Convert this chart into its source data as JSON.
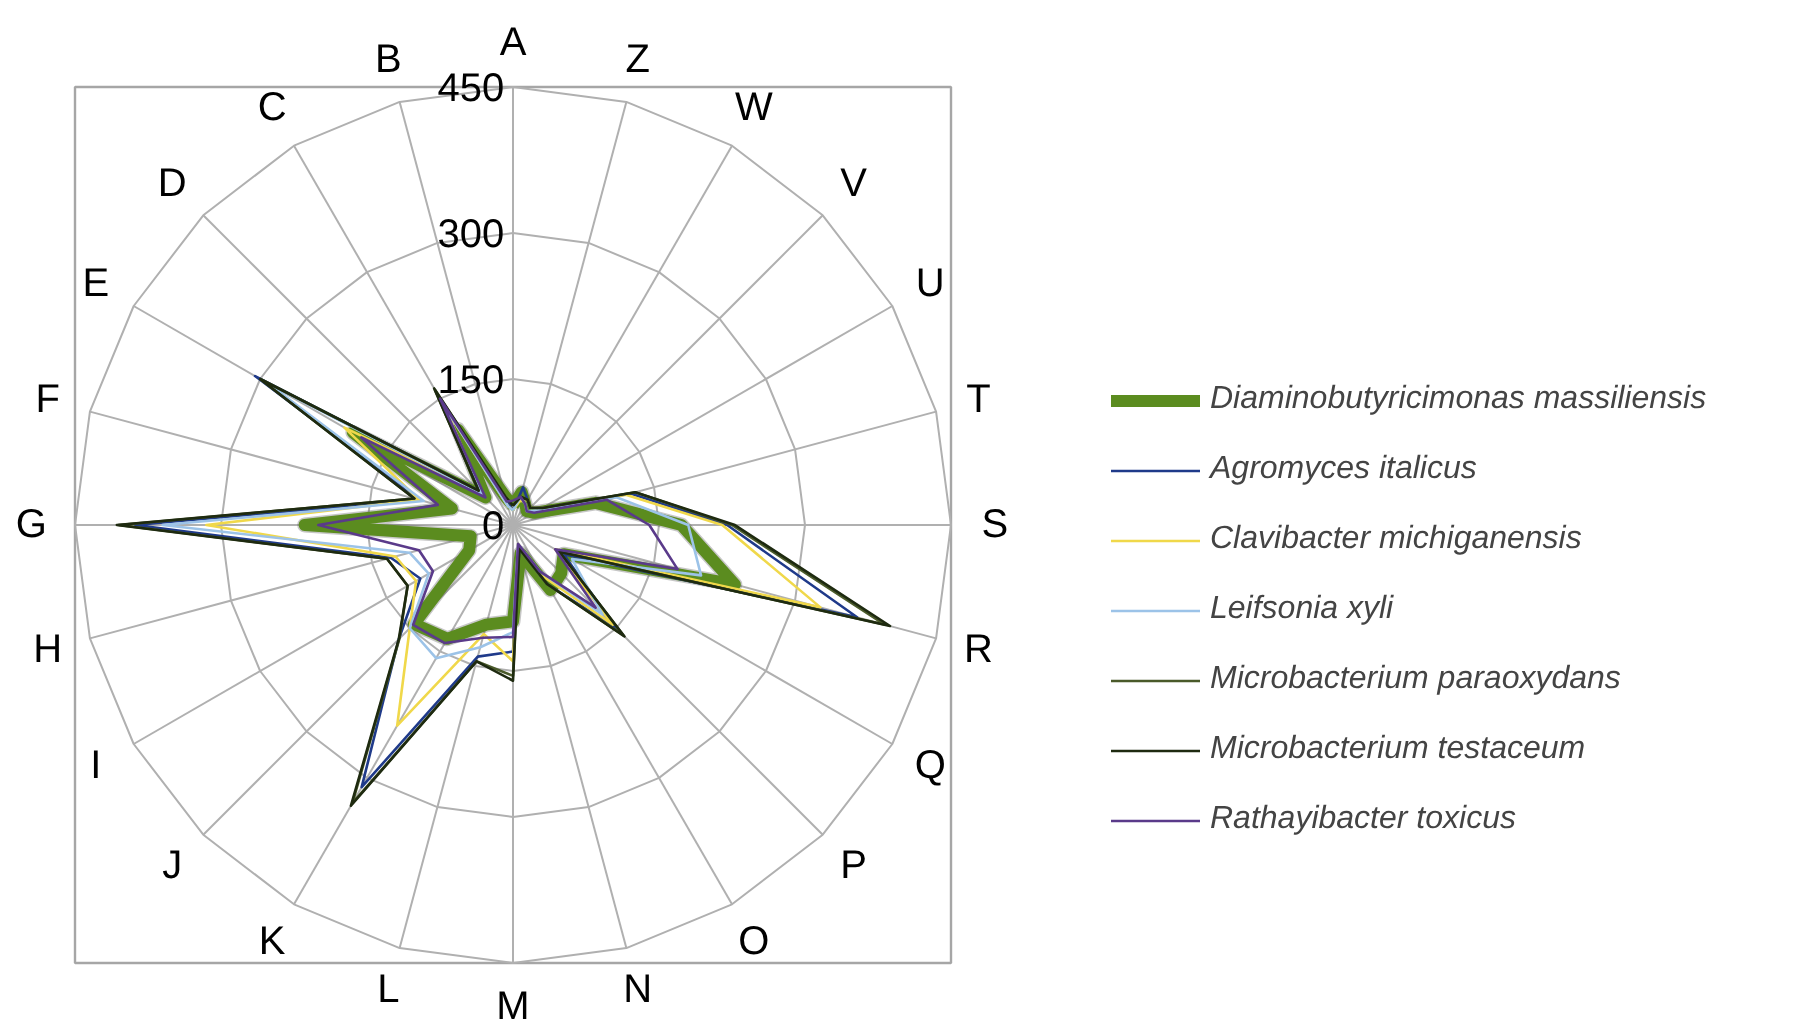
{
  "chart_data": {
    "type": "radar",
    "categories": [
      "A",
      "Z",
      "W",
      "V",
      "U",
      "T",
      "S",
      "R",
      "Q",
      "P",
      "O",
      "N",
      "M",
      "L",
      "K",
      "J",
      "I",
      "H",
      "G",
      "F",
      "E",
      "D",
      "C",
      "B"
    ],
    "ylim": [
      0,
      450
    ],
    "yticks": [
      0,
      150,
      300,
      450
    ],
    "grid": true,
    "legend": "right",
    "series": [
      {
        "name": "Diaminobutyricimonas massiliensis",
        "color": "#5b8c1f",
        "values": [
          20,
          35,
          25,
          20,
          25,
          88,
          173,
          236,
          60,
          70,
          77,
          30,
          99,
          106,
          135,
          144,
          52,
          45,
          214,
          65,
          190,
          40,
          113,
          30
        ]
      },
      {
        "name": "Agromyces italicus",
        "color": "#1f3a8a",
        "values": [
          15,
          40,
          30,
          25,
          35,
          125,
          220,
          366,
          60,
          150,
          70,
          25,
          130,
          140,
          311,
          166,
          110,
          130,
          388,
          100,
          306,
          50,
          150,
          25
        ]
      },
      {
        "name": "Clavibacter michiganensis",
        "color": "#f0d84a",
        "values": [
          15,
          25,
          30,
          25,
          35,
          120,
          215,
          327,
          50,
          145,
          60,
          20,
          140,
          116,
          238,
          150,
          115,
          125,
          315,
          100,
          200,
          45,
          140,
          20
        ]
      },
      {
        "name": "Leifsonia xyli",
        "color": "#9cc3e8",
        "values": [
          15,
          30,
          25,
          20,
          30,
          110,
          180,
          200,
          70,
          130,
          55,
          20,
          110,
          130,
          158,
          150,
          100,
          110,
          360,
          95,
          290,
          45,
          145,
          20
        ]
      },
      {
        "name": "Microbacterium paraoxydans",
        "color": "#4a5a2a",
        "values": [
          20,
          30,
          30,
          25,
          35,
          130,
          225,
          395,
          55,
          160,
          70,
          25,
          155,
          145,
          330,
          165,
          125,
          134,
          405,
          105,
          300,
          50,
          160,
          30
        ]
      },
      {
        "name": "Microbacterium testaceum",
        "color": "#1e2a10",
        "values": [
          20,
          30,
          30,
          25,
          35,
          130,
          228,
          401,
          55,
          162,
          70,
          25,
          160,
          145,
          333,
          166,
          125,
          134,
          407,
          105,
          300,
          50,
          162,
          30
        ]
      },
      {
        "name": "Rathayibacter toxicus",
        "color": "#5a3a8a",
        "values": [
          25,
          30,
          25,
          20,
          25,
          100,
          140,
          175,
          50,
          120,
          55,
          20,
          115,
          120,
          140,
          145,
          95,
          100,
          200,
          80,
          180,
          40,
          150,
          25
        ]
      }
    ]
  }
}
